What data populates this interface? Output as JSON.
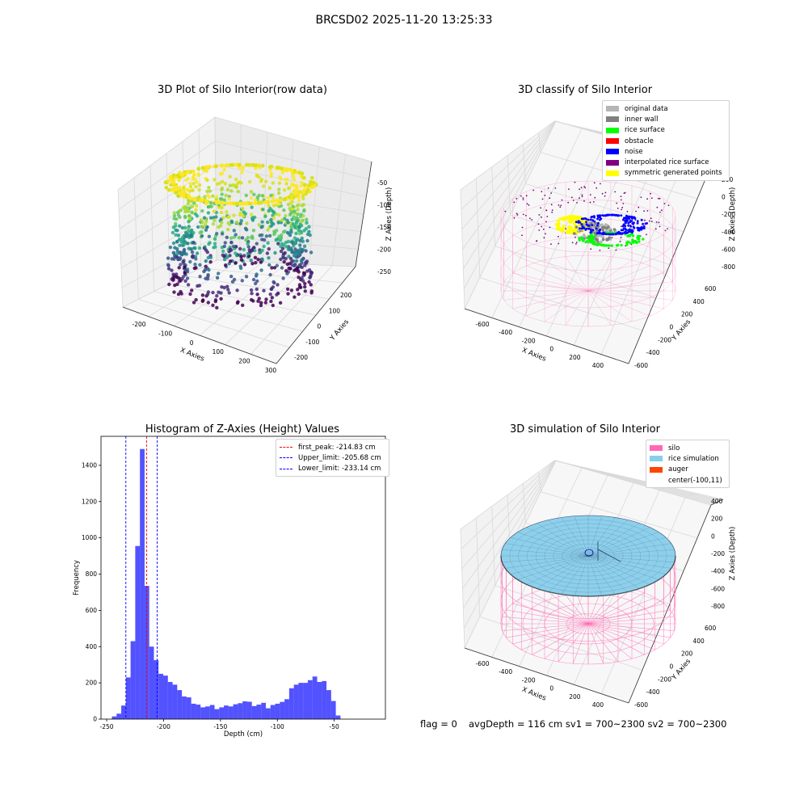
{
  "suptitle": "BRCSD02 2025-11-20 13:25:33",
  "panels": {
    "p1": {
      "title": "3D Plot of Silo Interior(row data)",
      "xlabel": "X Axies",
      "ylabel": "Y Axies",
      "zlabel": "Z Axies (Depth)",
      "xticks": [
        "-200",
        "-100",
        "0",
        "100",
        "200",
        "300"
      ],
      "yticks": [
        "200",
        "100",
        "0",
        "-100",
        "-200"
      ],
      "zticks": [
        "-50",
        "-100",
        "-150",
        "-200",
        "-250"
      ]
    },
    "p2": {
      "title": "3D classify of Silo Interior",
      "xlabel": "X Axies",
      "ylabel": "Y Axies",
      "zlabel": "Z Axies (Depth)",
      "xticks": [
        "-600",
        "-400",
        "-200",
        "0",
        "200",
        "400"
      ],
      "yticks": [
        "600",
        "400",
        "200",
        "0",
        "-200",
        "-400",
        "-600"
      ],
      "zticks": [
        "200",
        "0",
        "-200",
        "-400",
        "-600",
        "-800"
      ],
      "zcut": "00",
      "legend": [
        {
          "label": "original data",
          "color": "#b5b5b5"
        },
        {
          "label": "inner wall",
          "color": "#808080"
        },
        {
          "label": "rice surface",
          "color": "#00ff00"
        },
        {
          "label": "obstacle",
          "color": "#ff0000"
        },
        {
          "label": "noise",
          "color": "#0000ff"
        },
        {
          "label": "interpolated rice surface",
          "color": "#800080"
        },
        {
          "label": "symmetric generated points",
          "color": "#ffff00"
        }
      ]
    },
    "p4": {
      "title": "3D simulation of Silo Interior",
      "xlabel": "X Axies",
      "ylabel": "Y Axies",
      "zlabel": "Z Axies (Depth)",
      "xticks": [
        "-600",
        "-400",
        "-200",
        "0",
        "200",
        "400"
      ],
      "yticks": [
        "600",
        "400",
        "200",
        "0",
        "-200",
        "-400",
        "-600"
      ],
      "zticks": [
        "400",
        "200",
        "0",
        "-200",
        "-400",
        "-600",
        "-800"
      ],
      "legend": [
        {
          "label": "silo",
          "color": "#ff69b4"
        },
        {
          "label": "rice simulation",
          "color": "#87ceeb"
        },
        {
          "label": "auger",
          "color": "#ff4500"
        },
        {
          "label": "center(-100,11)",
          "color": "#ffffff"
        }
      ]
    }
  },
  "chart_data": {
    "type": "bar",
    "title": "Histogram of Z-Axies (Height) Values",
    "xlabel": "Depth (cm)",
    "ylabel": "Frequency",
    "xlim": [
      -255,
      -5
    ],
    "ylim": [
      0,
      1560
    ],
    "xticks": [
      -250,
      -200,
      -150,
      -100,
      -50
    ],
    "yticks": [
      0,
      200,
      400,
      600,
      800,
      1000,
      1200,
      1400
    ],
    "bin_width": 4.1,
    "bin_start": -249.5,
    "values": [
      0,
      15,
      30,
      75,
      230,
      430,
      955,
      1490,
      735,
      400,
      325,
      250,
      240,
      205,
      190,
      160,
      125,
      120,
      85,
      80,
      65,
      70,
      78,
      55,
      65,
      75,
      70,
      82,
      88,
      98,
      96,
      72,
      80,
      90,
      60,
      78,
      85,
      95,
      110,
      170,
      190,
      200,
      200,
      215,
      235,
      205,
      210,
      160,
      100,
      20
    ],
    "bar_color": "#0000ff",
    "lines": [
      {
        "label": "first_peak: -214.83 cm",
        "x": -214.83,
        "color": "#ff0000"
      },
      {
        "label": "Upper_limit: -205.68 cm",
        "x": -205.68,
        "color": "#0000ff"
      },
      {
        "label": "Lower_limit: -233.14 cm",
        "x": -233.14,
        "color": "#0000ff"
      }
    ]
  },
  "footer": {
    "flag": "flag = 0",
    "stats": "avgDepth = 116 cm  sv1 = 700~2300  sv2 = 700~2300"
  }
}
